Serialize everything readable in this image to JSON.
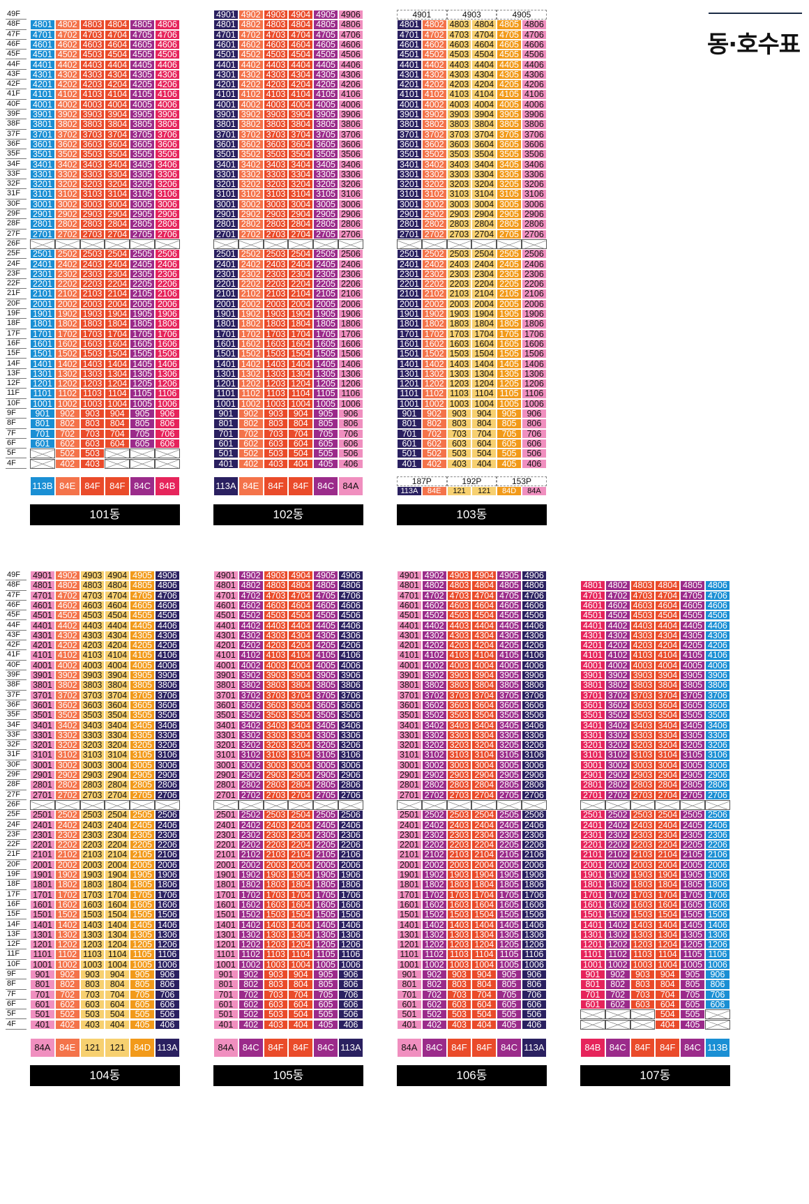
{
  "page_title": "동·호수표",
  "floors": [
    "49F",
    "48F",
    "47F",
    "46F",
    "45F",
    "44F",
    "43F",
    "42F",
    "41F",
    "40F",
    "39F",
    "38F",
    "37F",
    "36F",
    "35F",
    "34F",
    "33F",
    "32F",
    "31F",
    "30F",
    "29F",
    "28F",
    "27F",
    "26F",
    "25F",
    "24F",
    "23F",
    "22F",
    "21F",
    "20F",
    "19F",
    "18F",
    "17F",
    "16F",
    "15F",
    "14F",
    "13F",
    "12F",
    "11F",
    "10F",
    "9F",
    "8F",
    "7F",
    "6F",
    "5F",
    "4F"
  ],
  "colors": {
    "84A": "#f08fbf",
    "84B": "#e6245b",
    "84C": "#9b2b8a",
    "84D": "#f29a1a",
    "84E": "#f4734a",
    "84F": "#ea4b2a",
    "113A": "#2a2060",
    "113B": "#1a8fd4",
    "121": "#f7d070"
  },
  "buildings": [
    {
      "name": "101동",
      "types": [
        "113B",
        "84E",
        "84F",
        "84F",
        "84C",
        "84B"
      ],
      "top_floor": 48,
      "mid_empty": [
        26
      ],
      "bottom": {
        "5": [
          false,
          true,
          true,
          false,
          false,
          false
        ],
        "4": [
          false,
          true,
          true,
          false,
          false,
          false
        ],
        "6": [
          true,
          true,
          true,
          true,
          true,
          true
        ]
      }
    },
    {
      "name": "102동",
      "types": [
        "113A",
        "84E",
        "84F",
        "84F",
        "84C",
        "84A"
      ],
      "top_floor": 49,
      "mid_empty": [
        26
      ],
      "bottom": {}
    },
    {
      "name": "103동",
      "types": [
        "113A",
        "84E",
        "121",
        "121",
        "84D",
        "84A"
      ],
      "top_floor": 48,
      "mid_empty": [
        26
      ],
      "bottom": {},
      "top_labels": [
        "4901",
        "4903",
        "4905"
      ],
      "bottom_labels": [
        "187P",
        "192P",
        "153P"
      ]
    },
    {
      "name": "104동",
      "types": [
        "84A",
        "84E",
        "121",
        "121",
        "84D",
        "113A"
      ],
      "top_floor": 49,
      "mid_empty": [
        26
      ],
      "bottom": {}
    },
    {
      "name": "105동",
      "types": [
        "84A",
        "84C",
        "84F",
        "84F",
        "84C",
        "113A"
      ],
      "top_floor": 49,
      "mid_empty": [
        26
      ],
      "bottom": {}
    },
    {
      "name": "106동",
      "types": [
        "84A",
        "84C",
        "84F",
        "84F",
        "84C",
        "113A"
      ],
      "top_floor": 49,
      "mid_empty": [
        26
      ],
      "bottom": {}
    },
    {
      "name": "107동",
      "types": [
        "84B",
        "84C",
        "84F",
        "84F",
        "84C",
        "113B"
      ],
      "top_floor": 48,
      "mid_empty": [
        26
      ],
      "bottom": {
        "5": [
          false,
          false,
          false,
          true,
          true,
          false
        ],
        "4": [
          false,
          false,
          false,
          true,
          true,
          false
        ]
      }
    }
  ]
}
